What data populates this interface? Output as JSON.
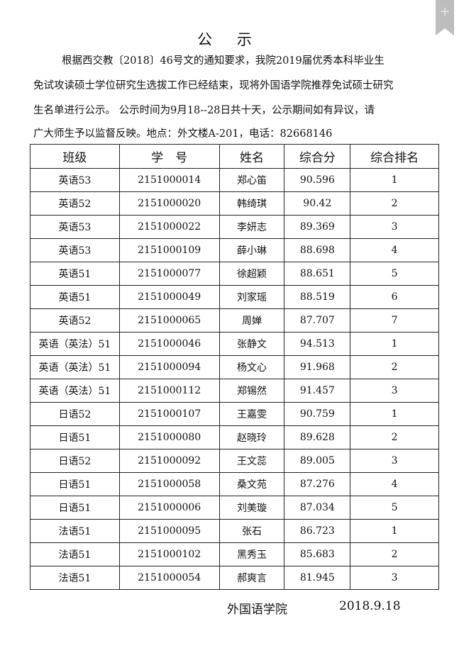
{
  "title": "公 示",
  "paragraph": [
    "根据西交教〔2018〕46号文的通知要求，我院2019届优秀本科毕业生",
    "免试攻读硕士学位研究生选拔工作已经结束，现将外国语学院推荐免试硕士研究",
    "生名单进行公示。 公示时间为9月18--28日共十天，公示期间如有异议，请",
    "广大师生予以监督反映。地点：外文楼A-201，电话：82668146"
  ],
  "table": {
    "headers": [
      "班级",
      "学　号",
      "姓名",
      "综合分",
      "综合排名"
    ],
    "rows": [
      [
        "英语53",
        "2151000014",
        "郑心笛",
        "90.596",
        "1"
      ],
      [
        "英语52",
        "2151000020",
        "韩绮琪",
        "90.42",
        "2"
      ],
      [
        "英语53",
        "2151000022",
        "李妍志",
        "89.369",
        "3"
      ],
      [
        "英语53",
        "2151000109",
        "薛小琳",
        "88.698",
        "4"
      ],
      [
        "英语51",
        "2151000077",
        "徐超颖",
        "88.651",
        "5"
      ],
      [
        "英语51",
        "2151000049",
        "刘家瑶",
        "88.519",
        "6"
      ],
      [
        "英语52",
        "2151000065",
        "周婵",
        "87.707",
        "7"
      ],
      [
        "英语（英法）51",
        "2151000046",
        "张静文",
        "94.513",
        "1"
      ],
      [
        "英语（英法）51",
        "2151000094",
        "杨文心",
        "91.968",
        "2"
      ],
      [
        "英语（英法）51",
        "2151000112",
        "郑锡然",
        "91.457",
        "3"
      ],
      [
        "日语52",
        "2151000107",
        "王嘉雯",
        "90.759",
        "1"
      ],
      [
        "日语51",
        "2151000080",
        "赵晓玲",
        "89.628",
        "2"
      ],
      [
        "日语52",
        "2151000092",
        "王文蕊",
        "89.005",
        "3"
      ],
      [
        "日语51",
        "2151000058",
        "桑文苑",
        "87.276",
        "4"
      ],
      [
        "日语51",
        "2151000006",
        "刘美璇",
        "87.034",
        "5"
      ],
      [
        "法语51",
        "2151000095",
        "张石",
        "86.723",
        "1"
      ],
      [
        "法语51",
        "2151000102",
        "黑秀玉",
        "85.683",
        "2"
      ],
      [
        "法语51",
        "2151000054",
        "郝爽言",
        "81.945",
        "3"
      ]
    ]
  },
  "footer": {
    "org": "外国语学院",
    "date": "2018.9.18"
  },
  "bookmark": {
    "icon": "bookmark-plus-icon",
    "glyph": "+"
  }
}
